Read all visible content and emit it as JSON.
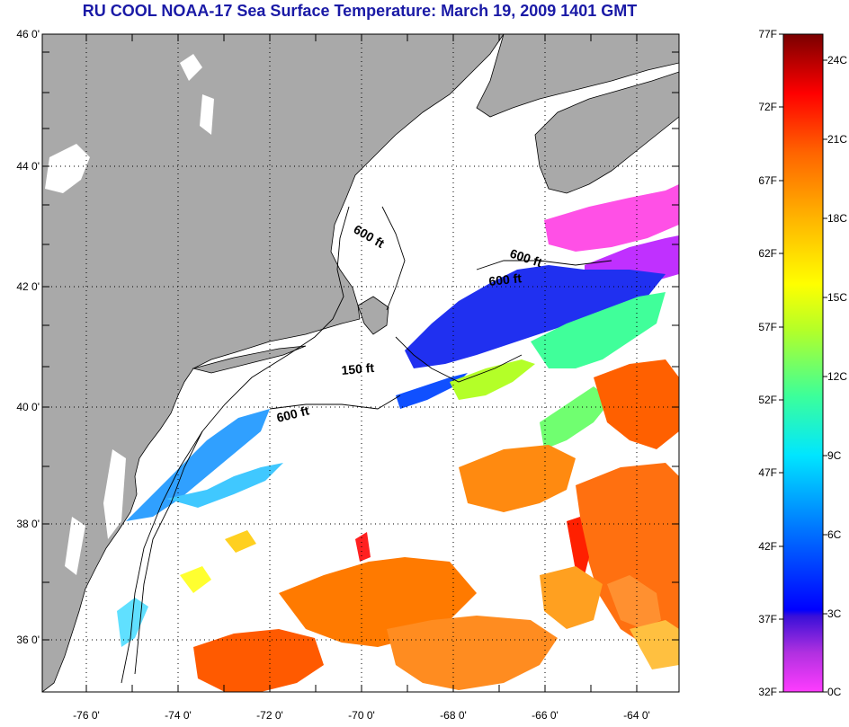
{
  "title": "RU COOL  NOAA-17  Sea Surface Temperature:  March 19, 2009 1401 GMT",
  "colors": {
    "land": "#a9a9a9",
    "title": "#1a1aa6",
    "grid": "#000000"
  },
  "lat_ticks": [
    "46 0'",
    "44 0'",
    "42 0'",
    "40 0'",
    "38 0'",
    "36 0'"
  ],
  "lon_ticks": [
    "-76 0'",
    "-74 0'",
    "-72 0'",
    "-70 0'",
    "-68 0'",
    "-66 0'",
    "-64 0'"
  ],
  "contour_labels": [
    "600 ft",
    "600 ft",
    "600 ft",
    "150 ft",
    "600 ft"
  ],
  "colorbar": {
    "f_labels": [
      "77F",
      "72F",
      "67F",
      "62F",
      "57F",
      "52F",
      "47F",
      "42F",
      "37F",
      "32F"
    ],
    "c_labels": [
      "24C",
      "21C",
      "18C",
      "15C",
      "12C",
      "9C",
      "6C",
      "3C",
      "0C"
    ]
  }
}
